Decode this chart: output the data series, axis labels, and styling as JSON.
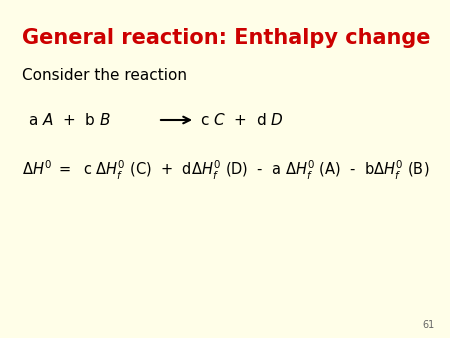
{
  "title": "General reaction: Enthalpy change",
  "title_color": "#cc0000",
  "background_color": "#fffee8",
  "text_color": "#000000",
  "consider_text": "Consider the reaction",
  "page_number": "61",
  "figsize": [
    4.5,
    3.38
  ],
  "dpi": 100,
  "title_fontsize": 15,
  "body_fontsize": 11,
  "rxn_fontsize": 11,
  "enth_fontsize": 10.5
}
